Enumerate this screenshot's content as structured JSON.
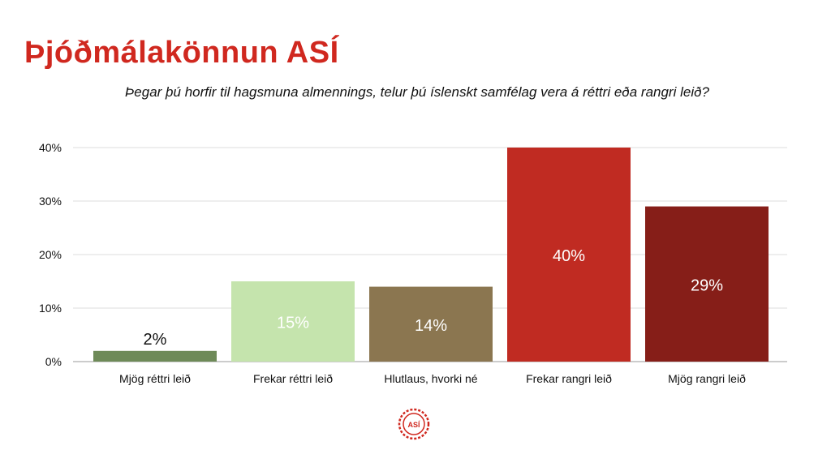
{
  "header": {
    "title": "Þjóðmálakönnun ASÍ",
    "subtitle": "Þegar þú horfir til hagsmuna almennings, telur þú íslenskt samfélag vera á réttri eða rangri leið?"
  },
  "logo": {
    "icon": "asi-seal-icon",
    "text": "ASÍ",
    "color": "#d0281f"
  },
  "chart_data": {
    "type": "bar",
    "categories": [
      "Mjög réttri leið",
      "Frekar réttri leið",
      "Hlutlaus, hvorki né",
      "Frekar rangri leið",
      "Mjög rangri leið"
    ],
    "values": [
      2,
      15,
      14,
      40,
      29
    ],
    "data_labels": [
      "2%",
      "15%",
      "14%",
      "40%",
      "29%"
    ],
    "colors": [
      "#6e8a58",
      "#c5e4ad",
      "#8b7650",
      "#c02b22",
      "#861e18"
    ],
    "label_colors": [
      "#111111",
      "#ffffff",
      "#ffffff",
      "#ffffff",
      "#ffffff"
    ],
    "ylim": [
      0,
      40
    ],
    "yticks": [
      0,
      10,
      20,
      30,
      40
    ],
    "ytick_labels": [
      "0%",
      "10%",
      "20%",
      "30%",
      "40%"
    ],
    "grid": true,
    "legend": "none"
  }
}
